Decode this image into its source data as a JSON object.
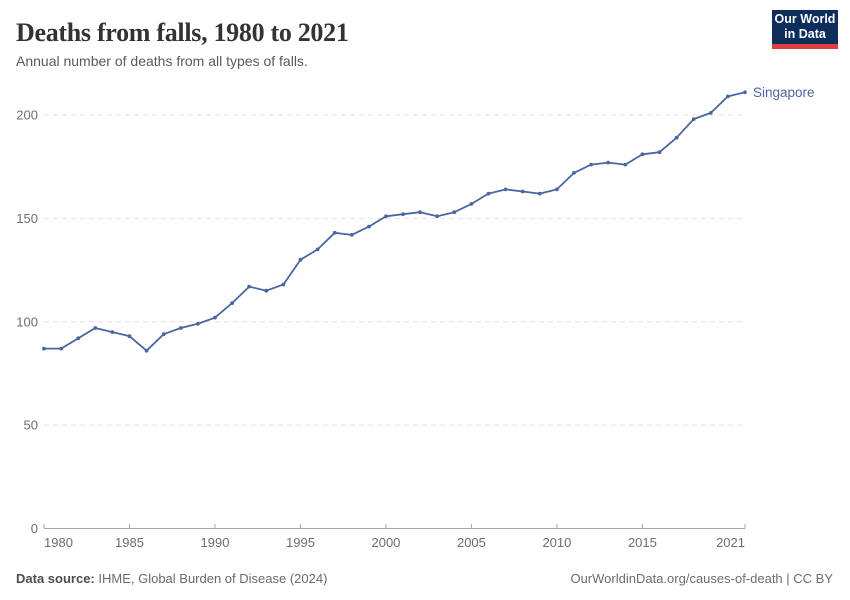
{
  "header": {
    "title": "Deaths from falls, 1980 to 2021",
    "subtitle": "Annual number of deaths from all types of falls.",
    "logo": {
      "line1": "Our World",
      "line2": "in Data",
      "bg_color": "#0d2e5b",
      "accent_color": "#e03e3e"
    }
  },
  "chart_data": {
    "type": "line",
    "title": "Deaths from falls, 1980 to 2021",
    "subtitle": "Annual number of deaths from all types of falls.",
    "x": [
      1980,
      1981,
      1982,
      1983,
      1984,
      1985,
      1986,
      1987,
      1988,
      1989,
      1990,
      1991,
      1992,
      1993,
      1994,
      1995,
      1996,
      1997,
      1998,
      1999,
      2000,
      2001,
      2002,
      2003,
      2004,
      2005,
      2006,
      2007,
      2008,
      2009,
      2010,
      2011,
      2012,
      2013,
      2014,
      2015,
      2016,
      2017,
      2018,
      2019,
      2020,
      2021
    ],
    "series": [
      {
        "name": "Singapore",
        "color": "#4a67a3",
        "values": [
          87,
          87,
          92,
          97,
          95,
          93,
          86,
          94,
          97,
          99,
          102,
          109,
          117,
          115,
          118,
          130,
          135,
          143,
          142,
          146,
          151,
          152,
          153,
          151,
          153,
          157,
          162,
          164,
          163,
          162,
          164,
          172,
          176,
          177,
          176,
          181,
          182,
          189,
          198,
          201,
          209,
          211
        ]
      }
    ],
    "xlabel": "",
    "ylabel": "",
    "xlim": [
      1980,
      2021
    ],
    "ylim": [
      0,
      215
    ],
    "xticks": [
      1980,
      1985,
      1990,
      1995,
      2000,
      2005,
      2010,
      2015,
      2021
    ],
    "yticks": [
      0,
      50,
      100,
      150,
      200
    ],
    "grid": "horizontal-dashed",
    "legend": "end-of-line-label",
    "end_label": "Singapore",
    "grid_color": "#e2e2e2",
    "axis_color": "#a9a9a9",
    "tick_label_color": "#6d6d6d"
  },
  "footer": {
    "source_label": "Data source:",
    "source_text": " IHME, Global Burden of Disease (2024)",
    "rights": "OurWorldinData.org/causes-of-death | CC BY"
  }
}
